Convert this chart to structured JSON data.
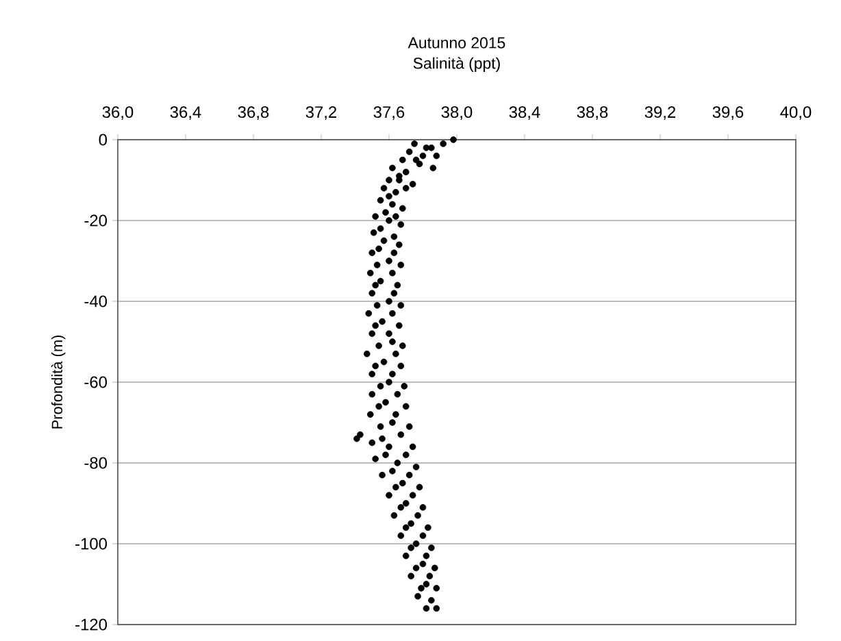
{
  "chart_data": {
    "type": "scatter",
    "title": "Autunno 2015",
    "xlabel": "Salinità (ppt)",
    "ylabel": "Profondità (m)",
    "xlim": [
      36.0,
      40.0
    ],
    "xticks": [
      {
        "value": 36.0,
        "label": "36,0"
      },
      {
        "value": 36.4,
        "label": "36,4"
      },
      {
        "value": 36.8,
        "label": "36,8"
      },
      {
        "value": 37.2,
        "label": "37,2"
      },
      {
        "value": 37.6,
        "label": "37,6"
      },
      {
        "value": 38.0,
        "label": "38,0"
      },
      {
        "value": 38.4,
        "label": "38,4"
      },
      {
        "value": 38.8,
        "label": "38,8"
      },
      {
        "value": 39.2,
        "label": "39,2"
      },
      {
        "value": 39.6,
        "label": "39,6"
      },
      {
        "value": 40.0,
        "label": "40,0"
      }
    ],
    "ylim": [
      -120,
      0
    ],
    "yticks": [
      -120,
      -100,
      -80,
      -60,
      -40,
      -20,
      0
    ],
    "grid": "y",
    "color": "#000000",
    "x": [
      37.98,
      37.92,
      37.85,
      37.75,
      37.72,
      37.8,
      37.88,
      37.68,
      37.78,
      37.86,
      37.62,
      37.7,
      37.6,
      37.66,
      37.74,
      37.57,
      37.64,
      37.55,
      37.62,
      37.68,
      37.52,
      37.6,
      37.67,
      37.51,
      37.57,
      37.66,
      37.5,
      37.6,
      37.67,
      37.49,
      37.55,
      37.65,
      37.5,
      37.6,
      37.67,
      37.48,
      37.56,
      37.66,
      37.5,
      37.62,
      37.68,
      37.47,
      37.57,
      37.67,
      37.5,
      37.6,
      37.69,
      37.5,
      37.58,
      37.7,
      37.49,
      37.62,
      37.72,
      37.41,
      37.43,
      37.5,
      37.6,
      37.74,
      37.52,
      37.65,
      37.76,
      37.56,
      37.68,
      37.78,
      37.6,
      37.7,
      37.8,
      37.63,
      37.73,
      37.83,
      37.67,
      37.76,
      37.85,
      37.7,
      37.8,
      37.87,
      37.73,
      37.82,
      37.88,
      37.77,
      37.85,
      37.88,
      37.82,
      37.76,
      37.66,
      37.7,
      37.6,
      37.58,
      37.64,
      37.55,
      37.63,
      37.54,
      37.63,
      37.53,
      37.62,
      37.52,
      37.63,
      37.53,
      37.62,
      37.52,
      37.6,
      37.54,
      37.64,
      37.52,
      37.62,
      37.55,
      37.65,
      37.54,
      37.64,
      37.55,
      37.67,
      37.56,
      37.58,
      37.7,
      37.62,
      37.72,
      37.64,
      37.74,
      37.67,
      37.77,
      37.7,
      37.8,
      37.73,
      37.82,
      37.76,
      37.84,
      37.79,
      37.82
    ],
    "values": [
      0,
      -1,
      -2,
      -1,
      -3,
      -4,
      -4,
      -5,
      -6,
      -7,
      -7,
      -8,
      -10,
      -10,
      -11,
      -12,
      -13,
      -15,
      -16,
      -17,
      -19,
      -20,
      -21,
      -23,
      -25,
      -26,
      -28,
      -30,
      -31,
      -33,
      -35,
      -36,
      -38,
      -40,
      -41,
      -43,
      -45,
      -46,
      -48,
      -50,
      -51,
      -53,
      -55,
      -56,
      -58,
      -60,
      -61,
      -63,
      -65,
      -66,
      -68,
      -70,
      -71,
      -74,
      -73,
      -75,
      -76,
      -76,
      -79,
      -80,
      -81,
      -83,
      -85,
      -86,
      -88,
      -90,
      -91,
      -93,
      -95,
      -96,
      -98,
      -100,
      -101,
      -103,
      -105,
      -106,
      -108,
      -110,
      -111,
      -113,
      -114,
      -116,
      -2,
      -5,
      -9,
      -12,
      -14,
      -18,
      -19,
      -22,
      -24,
      -27,
      -28,
      -31,
      -33,
      -36,
      -38,
      -41,
      -43,
      -46,
      -48,
      -51,
      -53,
      -56,
      -58,
      -61,
      -63,
      -66,
      -68,
      -71,
      -73,
      -74,
      -78,
      -78,
      -82,
      -83,
      -86,
      -88,
      -91,
      -93,
      -96,
      -98,
      -101,
      -103,
      -106,
      -108,
      -111,
      -116
    ]
  }
}
